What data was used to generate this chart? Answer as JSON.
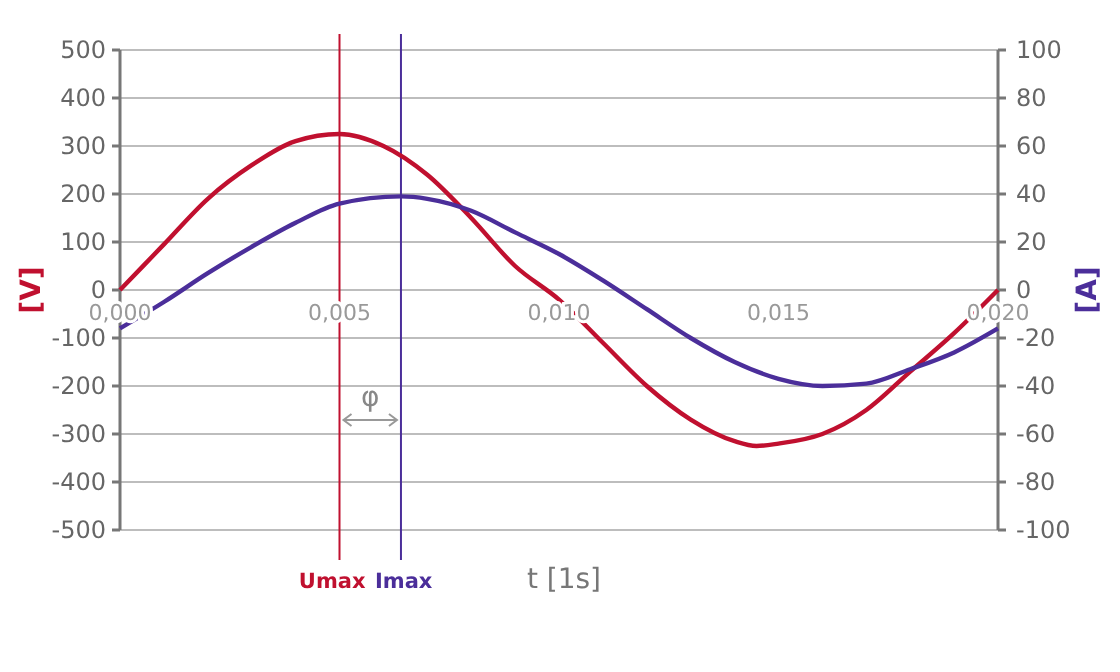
{
  "chart_data": {
    "type": "line",
    "xlabel": "t [1s]",
    "ylabel": "[V]",
    "y2label": "[A]",
    "xlim": [
      0,
      0.02
    ],
    "xticks": [
      {
        "value": 0,
        "label": "0,000"
      },
      {
        "value": 0.005,
        "label": "0,005"
      },
      {
        "value": 0.01,
        "label": "0,010"
      },
      {
        "value": 0.015,
        "label": "0,015"
      },
      {
        "value": 0.02,
        "label": "0,020"
      }
    ],
    "ylim": [
      -500,
      500
    ],
    "yticks": [
      -500,
      -400,
      -300,
      -200,
      -100,
      0,
      100,
      200,
      300,
      400,
      500
    ],
    "y2lim": [
      -100,
      100
    ],
    "y2ticks": [
      -100,
      -80,
      -60,
      -40,
      -20,
      0,
      20,
      40,
      60,
      80,
      100
    ],
    "grid": "y",
    "line_style": "solid",
    "series": [
      {
        "color": "#c0102f",
        "x": [
          0,
          0.001,
          0.002,
          0.003,
          0.004,
          0.005,
          0.006,
          0.007,
          0.008,
          0.009,
          0.01,
          0.011,
          0.012,
          0.013,
          0.014,
          0.0145,
          0.015,
          0.016,
          0.017,
          0.018,
          0.019,
          0.02
        ],
        "values": [
          0,
          95,
          190,
          260,
          310,
          325,
          300,
          240,
          150,
          50,
          -20,
          -110,
          -200,
          -270,
          -315,
          -325,
          -320,
          -300,
          -250,
          -170,
          -90,
          0
        ]
      },
      {
        "color": "#4b2e9a",
        "axis": "y2",
        "x": [
          0,
          0.001,
          0.002,
          0.003,
          0.004,
          0.005,
          0.0064,
          0.007,
          0.008,
          0.009,
          0.01,
          0.011,
          0.012,
          0.013,
          0.014,
          0.015,
          0.016,
          0.017,
          0.018,
          0.019,
          0.02
        ],
        "values": [
          -16,
          -5,
          7,
          18,
          28,
          36,
          39,
          38,
          33,
          24,
          15,
          4,
          -8,
          -20,
          -30,
          -37,
          -40,
          -39,
          -33,
          -26,
          -16
        ]
      }
    ],
    "ref_lines": [
      {
        "axis": "x",
        "value": 0.005,
        "label": "Umax",
        "color": "#c0102f"
      },
      {
        "axis": "x",
        "value": 0.0064,
        "label": "Imax",
        "color": "#4b2e9a"
      }
    ],
    "annotations": [
      "φ"
    ]
  }
}
